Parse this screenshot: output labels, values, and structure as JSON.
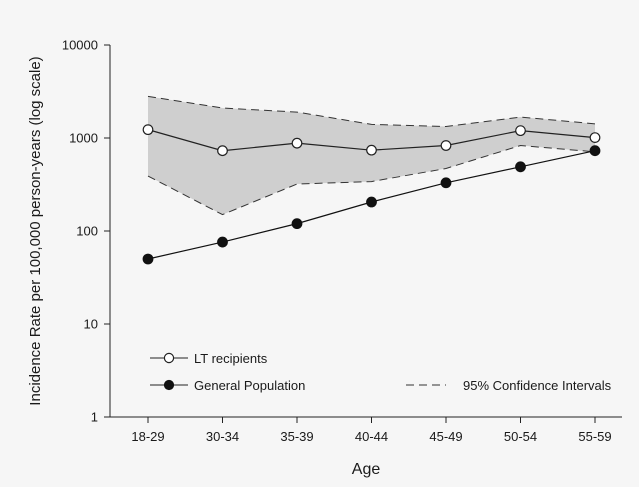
{
  "chart_data": {
    "type": "line",
    "xlabel": "Age",
    "ylabel": "Incidence Rate per 100,000 person-years (log scale)",
    "y_scale": "log",
    "ylim": [
      1,
      10000
    ],
    "y_ticks": [
      "1",
      "10",
      "100",
      "1000",
      "10000"
    ],
    "y_tick_values": [
      1,
      10,
      100,
      1000,
      10000
    ],
    "categories": [
      "18-29",
      "30-34",
      "35-39",
      "40-44",
      "45-49",
      "50-54",
      "55-59"
    ],
    "grid": false,
    "ci_band": {
      "label": "95% Confidence Intervals",
      "upper": [
        2800,
        2100,
        1900,
        1400,
        1330,
        1680,
        1420
      ],
      "lower": [
        390,
        150,
        320,
        340,
        470,
        830,
        710
      ],
      "fill_color": "#cfcfcf",
      "line_color": "#333333"
    },
    "series": [
      {
        "name": "LT recipients",
        "values": [
          1230,
          730,
          880,
          740,
          830,
          1200,
          1010
        ],
        "marker": "open-circle",
        "color": "#222222"
      },
      {
        "name": "General Population",
        "values": [
          50,
          76,
          120,
          205,
          330,
          490,
          730
        ],
        "marker": "filled-circle",
        "color": "#111111"
      }
    ],
    "legend": {
      "placement": "bottom",
      "entries": [
        "LT recipients",
        "General Population",
        "95% Confidence Intervals"
      ]
    }
  }
}
